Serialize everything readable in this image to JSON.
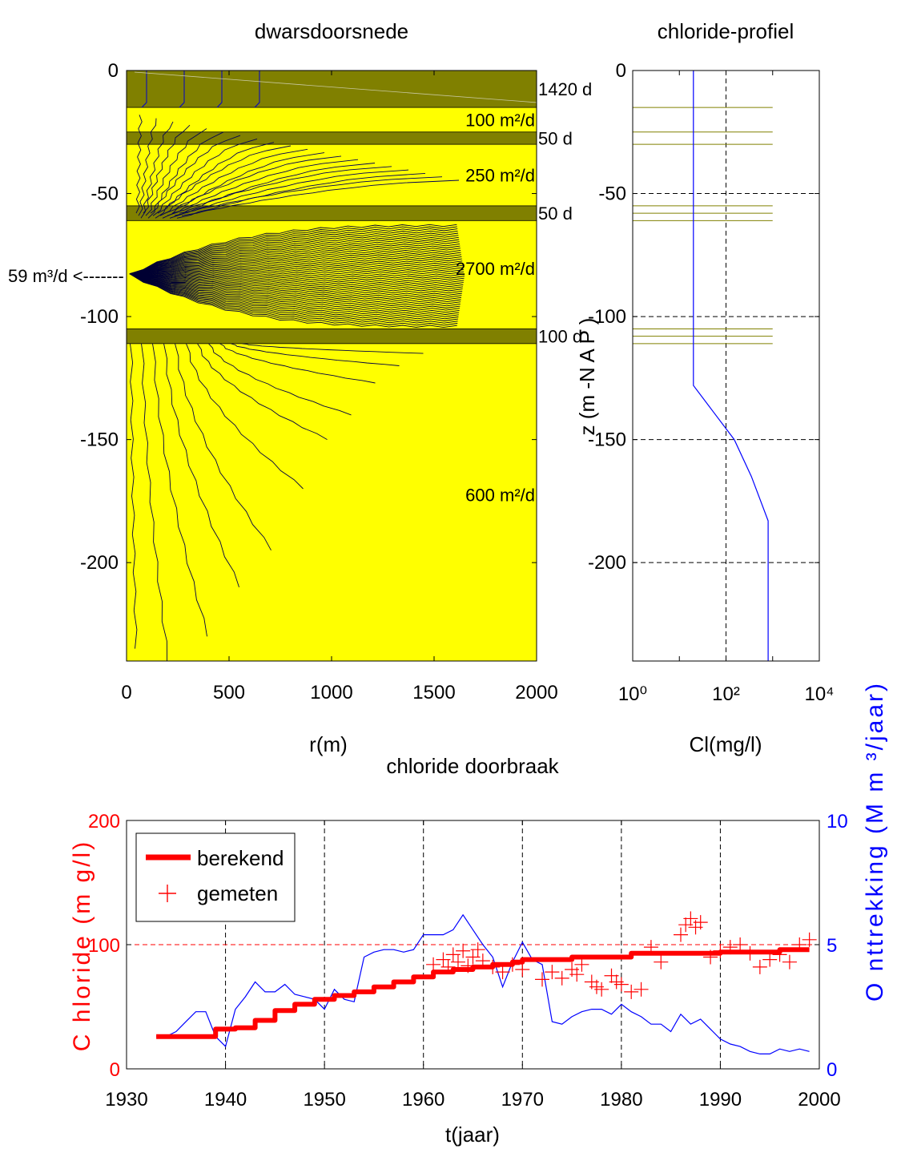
{
  "chart_data": [
    {
      "type": "area",
      "title": "dwarsdoorsnede",
      "xlabel": "r(m)",
      "ylabel": "",
      "xlim": [
        0,
        2000
      ],
      "ylim": [
        -240,
        0
      ],
      "xticks": [
        "0",
        "500",
        "1000",
        "1500",
        "2000"
      ],
      "yticks": [
        "0",
        "-50",
        "-100",
        "-150",
        "-200"
      ],
      "colors": {
        "aquifer": "#ffff00",
        "aquitard": "#808000",
        "streamline": "#000066",
        "top_streamline": "#0000cc"
      },
      "layers": [
        {
          "type": "aquitard",
          "top": 0,
          "bottom": -15,
          "label": "1420 d"
        },
        {
          "type": "aquifer",
          "top": -15,
          "bottom": -25,
          "label": "100 m²/d"
        },
        {
          "type": "aquitard",
          "top": -25,
          "bottom": -30,
          "label": "50 d"
        },
        {
          "type": "aquifer",
          "top": -30,
          "bottom": -55,
          "label": "250 m²/d"
        },
        {
          "type": "aquitard",
          "top": -55,
          "bottom": -61,
          "label": "50 d"
        },
        {
          "type": "aquifer",
          "top": -61,
          "bottom": -105,
          "label": "2700 m²/d"
        },
        {
          "type": "aquitard",
          "top": -105,
          "bottom": -111,
          "label": "100 d"
        },
        {
          "type": "aquifer",
          "top": -111,
          "bottom": -240,
          "label": "600 m²/d"
        }
      ],
      "well_label": "59 m³/d <-------",
      "well_depth": -83
    },
    {
      "type": "line",
      "title": "chloride-profiel",
      "xlabel": "Cl(mg/l)",
      "ylabel": "z (m -N A P )",
      "xscale": "log",
      "xlim": [
        1,
        10000
      ],
      "ylim": [
        -240,
        0
      ],
      "xticks": [
        "10⁰",
        "10²",
        "10⁴"
      ],
      "yticks": [
        "0",
        "-50",
        "-100",
        "-150",
        "-200"
      ],
      "grid": true,
      "series": [
        {
          "cl": [
            20,
            20,
            50,
            150,
            350,
            800,
            800
          ],
          "z": [
            0,
            -128,
            -138,
            -150,
            -165,
            -183,
            -240
          ]
        }
      ],
      "layer_boundaries": [
        0,
        -15,
        -25,
        -30,
        -55,
        -58,
        -61,
        -105,
        -108,
        -111
      ]
    },
    {
      "type": "line",
      "title": "chloride doorbraak",
      "xlabel": "t(jaar)",
      "ylabel": "C hloride (m g/l)",
      "y2label": "O nttrekking (M m ³/jaar)",
      "xlim": [
        1930,
        2000
      ],
      "ylim": [
        0,
        200
      ],
      "y2lim": [
        0,
        10
      ],
      "xticks": [
        "1930",
        "1940",
        "1950",
        "1960",
        "1970",
        "1980",
        "1990",
        "2000"
      ],
      "yticks": [
        "0",
        "100",
        "200"
      ],
      "y2ticks": [
        "0",
        "5",
        "10"
      ],
      "grid": true,
      "legend_position": "top-left",
      "reference_line": 100,
      "series": [
        {
          "name": "berekend",
          "color": "#ff0000",
          "x": [
            1933,
            1937,
            1939,
            1941,
            1943,
            1945,
            1947,
            1949,
            1951,
            1953,
            1955,
            1957,
            1959,
            1961,
            1963,
            1965,
            1967,
            1969,
            1970,
            1972,
            1975,
            1980,
            1981,
            1985,
            1990,
            1995,
            1996,
            1999
          ],
          "y": [
            26,
            26,
            32,
            33,
            39,
            47,
            52,
            56,
            59,
            62,
            66,
            70,
            74,
            78,
            80,
            82,
            84,
            86,
            88,
            88,
            90,
            90,
            93,
            93,
            94,
            94,
            96,
            96
          ]
        },
        {
          "name": "gemeten",
          "color": "#ff0000",
          "x": [
            1961,
            1962,
            1962.5,
            1963,
            1963.5,
            1964,
            1964.5,
            1965,
            1965.5,
            1966,
            1967,
            1968,
            1969,
            1970,
            1972,
            1973,
            1974,
            1975,
            1975.5,
            1976,
            1977,
            1977.5,
            1978,
            1979,
            1979.5,
            1980,
            1981,
            1982,
            1983,
            1984,
            1986,
            1986.5,
            1987,
            1987.5,
            1988,
            1989,
            1990,
            1991,
            1992,
            1993,
            1994,
            1995,
            1996,
            1997,
            1998,
            1999
          ],
          "y": [
            84,
            88,
            82,
            92,
            86,
            95,
            83,
            90,
            96,
            87,
            82,
            78,
            84,
            80,
            72,
            78,
            73,
            80,
            76,
            84,
            70,
            66,
            64,
            75,
            70,
            68,
            62,
            64,
            98,
            86,
            108,
            116,
            121,
            114,
            118,
            90,
            95,
            98,
            100,
            93,
            82,
            88,
            92,
            86,
            100,
            104
          ]
        },
        {
          "name": "onttrekking",
          "color": "#0000ff",
          "axis": "right",
          "x": [
            1933,
            1934,
            1935,
            1936,
            1937,
            1938,
            1939,
            1940,
            1941,
            1942,
            1943,
            1944,
            1945,
            1946,
            1947,
            1948,
            1949,
            1950,
            1951,
            1952,
            1953,
            1954,
            1955,
            1956,
            1957,
            1958,
            1959,
            1960,
            1961,
            1962,
            1963,
            1964,
            1965,
            1966,
            1967,
            1968,
            1969,
            1970,
            1971,
            1972,
            1973,
            1974,
            1975,
            1976,
            1977,
            1978,
            1979,
            1980,
            1981,
            1982,
            1983,
            1984,
            1985,
            1986,
            1987,
            1988,
            1989,
            1990,
            1991,
            1992,
            1993,
            1994,
            1995,
            1996,
            1997,
            1998,
            1999
          ],
          "y": [
            1.3,
            1.3,
            1.5,
            1.9,
            2.3,
            2.3,
            1.3,
            0.9,
            2.4,
            2.9,
            3.5,
            3.1,
            3.1,
            3.4,
            3.0,
            2.9,
            2.8,
            2.4,
            3.2,
            2.8,
            2.7,
            4.5,
            4.7,
            4.8,
            4.8,
            4.7,
            4.8,
            5.4,
            5.4,
            5.4,
            5.6,
            6.2,
            5.6,
            5.0,
            4.5,
            3.3,
            4.3,
            5.1,
            4.4,
            4.2,
            1.9,
            1.8,
            2.1,
            2.3,
            2.4,
            2.4,
            2.2,
            2.6,
            2.3,
            2.1,
            1.8,
            1.8,
            1.5,
            2.2,
            1.8,
            2.0,
            1.6,
            1.2,
            1.0,
            0.9,
            0.7,
            0.6,
            0.6,
            0.8,
            0.7,
            0.8,
            0.7
          ]
        }
      ]
    }
  ]
}
